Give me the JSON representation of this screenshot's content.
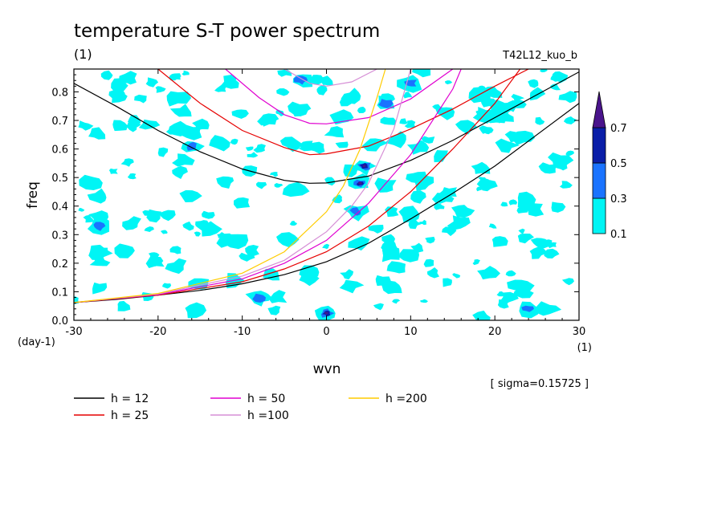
{
  "chart_data": {
    "type": "heatmap",
    "title": "temperature S-T power spectrum",
    "subtitle": "(1)",
    "run_label": "T42L12_kuo_b",
    "xlabel": "wvn",
    "x_unit": "(1)",
    "ylabel": "freq",
    "y_unit": "(day-1)",
    "xlim": [
      -30,
      30
    ],
    "ylim": [
      0.0,
      0.88
    ],
    "x_ticks": [
      "-30",
      "-20",
      "-10",
      "0",
      "10",
      "20",
      "30"
    ],
    "y_ticks": [
      "0.0",
      "0.1",
      "0.2",
      "0.3",
      "0.4",
      "0.5",
      "0.6",
      "0.7",
      "0.8"
    ],
    "sigma_text": "[ sigma=0.15725 ]",
    "colorbar": {
      "levels": [
        "0.1",
        "0.3",
        "0.5",
        "0.7"
      ],
      "colors": [
        "#00f5f5",
        "#1a73ff",
        "#0a1ea8",
        "#4a148c"
      ]
    },
    "contour_blobs": [
      {
        "x": 0,
        "y": 0.025,
        "level": 3
      },
      {
        "x": 4.5,
        "y": 0.54,
        "level": 3
      },
      {
        "x": 4,
        "y": 0.48,
        "level": 3
      },
      {
        "x": 3.5,
        "y": 0.38,
        "level": 2
      },
      {
        "x": 7,
        "y": 0.76,
        "level": 2
      },
      {
        "x": 10,
        "y": 0.83,
        "level": 2
      },
      {
        "x": -3,
        "y": 0.84,
        "level": 2
      },
      {
        "x": -16,
        "y": 0.61,
        "level": 2
      },
      {
        "x": -16,
        "y": 0.66,
        "level": 1
      },
      {
        "x": -8,
        "y": 0.08,
        "level": 2
      },
      {
        "x": 24,
        "y": 0.04,
        "level": 2
      },
      {
        "x": -27,
        "y": 0.33,
        "level": 2
      },
      {
        "x": 7,
        "y": 0.47,
        "level": 1
      },
      {
        "x": 10,
        "y": 0.37,
        "level": 1
      },
      {
        "x": 20,
        "y": 0.71,
        "level": 1
      },
      {
        "x": -11,
        "y": 0.14,
        "level": 1
      },
      {
        "x": -17,
        "y": 0.73,
        "level": 1
      },
      {
        "x": -27,
        "y": 0.43,
        "level": 1
      },
      {
        "x": -14,
        "y": 0.32,
        "level": 1
      }
    ],
    "legend": [
      {
        "label": "h = 12",
        "color": "#000000"
      },
      {
        "label": "h = 25",
        "color": "#e60000"
      },
      {
        "label": "h = 50",
        "color": "#e000d0"
      },
      {
        "label": "h =100",
        "color": "#d68fd6"
      },
      {
        "label": "h =200",
        "color": "#ffcc00"
      }
    ],
    "series": [
      {
        "name": "h = 12",
        "color": "#000000",
        "x": [
          -30,
          -25,
          -20,
          -15,
          -10,
          -5,
          0,
          5,
          10,
          15,
          20,
          25,
          30
        ],
        "y": [
          0.062,
          0.073,
          0.088,
          0.105,
          0.128,
          0.16,
          0.205,
          0.27,
          0.355,
          0.445,
          0.54,
          0.65,
          0.76
        ],
        "curve2_x": [
          -30,
          -25,
          -20,
          -15,
          -10,
          -5,
          -2,
          0,
          5,
          10,
          15,
          20,
          25,
          30
        ],
        "curve2_y": [
          0.83,
          0.75,
          0.665,
          0.59,
          0.53,
          0.49,
          0.48,
          0.481,
          0.505,
          0.56,
          0.63,
          0.71,
          0.79,
          0.87
        ]
      },
      {
        "name": "h = 25",
        "color": "#e60000",
        "x": [
          -30,
          -20,
          -10,
          -5,
          0,
          5,
          10,
          15,
          20,
          23
        ],
        "y": [
          0.062,
          0.088,
          0.135,
          0.18,
          0.24,
          0.33,
          0.45,
          0.6,
          0.76,
          0.88
        ],
        "curve2_x": [
          -20,
          -15,
          -10,
          -5,
          -2,
          0,
          5,
          10,
          15,
          20,
          24
        ],
        "curve2_y": [
          0.88,
          0.76,
          0.665,
          0.605,
          0.58,
          0.583,
          0.61,
          0.67,
          0.74,
          0.82,
          0.88
        ]
      },
      {
        "name": "h = 50",
        "color": "#e000d0",
        "x": [
          -30,
          -20,
          -10,
          -5,
          0,
          5,
          10,
          15,
          16
        ],
        "y": [
          0.062,
          0.09,
          0.145,
          0.2,
          0.28,
          0.41,
          0.58,
          0.81,
          0.88
        ],
        "curve2_x": [
          -12,
          -8,
          -5,
          -2,
          0,
          5,
          10,
          15
        ],
        "curve2_y": [
          0.88,
          0.78,
          0.72,
          0.69,
          0.688,
          0.71,
          0.775,
          0.88
        ]
      },
      {
        "name": "h =100",
        "color": "#d68fd6",
        "x": [
          -30,
          -20,
          -10,
          -5,
          0,
          3,
          5,
          8,
          10
        ],
        "y": [
          0.062,
          0.092,
          0.155,
          0.21,
          0.31,
          0.4,
          0.48,
          0.67,
          0.88
        ],
        "curve2_x": [
          -5,
          -2,
          0,
          3,
          6
        ],
        "curve2_y": [
          0.88,
          0.83,
          0.82,
          0.835,
          0.88
        ]
      },
      {
        "name": "h =200",
        "color": "#ffcc00",
        "x": [
          -30,
          -20,
          -10,
          -5,
          0,
          2,
          4,
          6,
          7
        ],
        "y": [
          0.062,
          0.094,
          0.165,
          0.24,
          0.38,
          0.47,
          0.6,
          0.78,
          0.88
        ]
      }
    ]
  }
}
